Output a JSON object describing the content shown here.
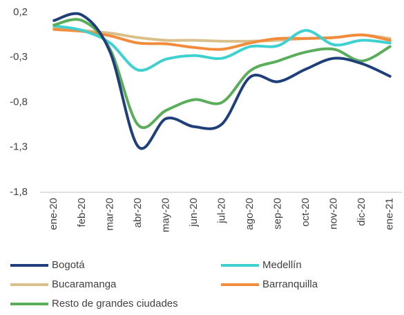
{
  "chart_data": {
    "type": "line",
    "categories": [
      "ene-20",
      "feb-20",
      "mar-20",
      "abr-20",
      "may-20",
      "jun-20",
      "jul-20",
      "ago-20",
      "sep-20",
      "oct-20",
      "nov-20",
      "dic-20",
      "ene-21"
    ],
    "series": [
      {
        "name": "Bogotá",
        "color": "#1f3f7a",
        "values": [
          0.11,
          0.17,
          -0.24,
          -1.29,
          -0.98,
          -1.07,
          -1.04,
          -0.52,
          -0.57,
          -0.43,
          -0.31,
          -0.37,
          -0.51
        ]
      },
      {
        "name": "Medellín",
        "color": "#3fd0d0",
        "values": [
          0.05,
          0.0,
          -0.14,
          -0.44,
          -0.32,
          -0.28,
          -0.31,
          -0.18,
          -0.17,
          0.0,
          -0.16,
          -0.11,
          -0.14
        ]
      },
      {
        "name": "Bucaramanga",
        "color": "#d9c08a",
        "values": [
          0.03,
          0.0,
          -0.03,
          -0.08,
          -0.11,
          -0.11,
          -0.12,
          -0.12,
          -0.11,
          -0.09,
          -0.08,
          -0.05,
          -0.09
        ]
      },
      {
        "name": "Barranquilla",
        "color": "#f28c3c",
        "values": [
          0.01,
          -0.01,
          -0.06,
          -0.14,
          -0.15,
          -0.19,
          -0.21,
          -0.14,
          -0.09,
          -0.09,
          -0.08,
          -0.05,
          -0.11
        ]
      },
      {
        "name": "Resto de grandes ciudades",
        "color": "#5aad5a",
        "values": [
          0.06,
          0.11,
          -0.21,
          -1.05,
          -0.89,
          -0.77,
          -0.8,
          -0.45,
          -0.34,
          -0.24,
          -0.21,
          -0.34,
          -0.18
        ]
      }
    ],
    "ylim": [
      -1.8,
      0.2
    ],
    "yticks": [
      {
        "value": 0.2,
        "label": "0,2"
      },
      {
        "value": -0.3,
        "label": "-0,3"
      },
      {
        "value": -0.8,
        "label": "-0,8"
      },
      {
        "value": -1.3,
        "label": "-1,3"
      },
      {
        "value": -1.8,
        "label": "-1,8"
      }
    ],
    "grid": false
  }
}
